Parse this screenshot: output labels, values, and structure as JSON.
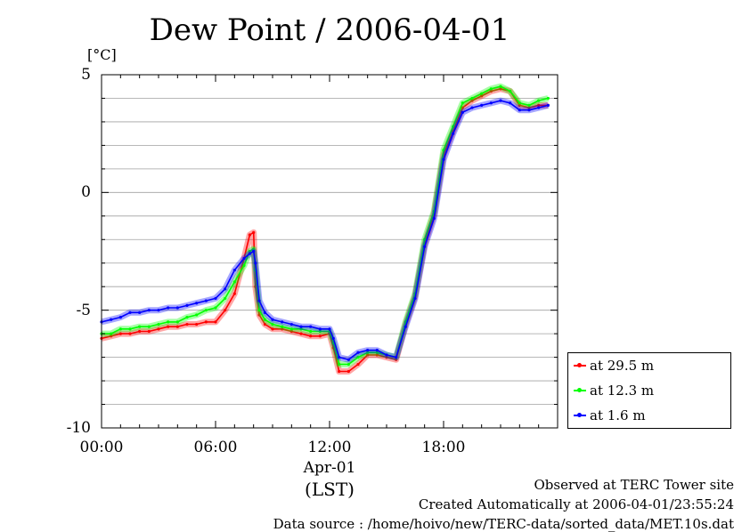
{
  "chart_data": {
    "type": "line",
    "title": "Dew Point / 2006-04-01",
    "ylabel": "[°C]",
    "xlabel": "Apr-01",
    "xlabel_sub": "(LST)",
    "ylim": [
      -10,
      5
    ],
    "yticks": [
      "5",
      "0",
      "-5",
      "-10"
    ],
    "xlim": [
      0,
      24
    ],
    "xticks": [
      "00:00",
      "06:00",
      "12:00",
      "18:00"
    ],
    "grid": "horizontal",
    "legend_position": "bottom-right outside",
    "x": [
      0,
      0.5,
      1,
      1.5,
      2,
      2.5,
      3,
      3.5,
      4,
      4.5,
      5,
      5.5,
      6,
      6.5,
      7,
      7.5,
      7.8,
      8.0,
      8.1,
      8.3,
      8.6,
      9,
      9.5,
      10,
      10.5,
      11,
      11.5,
      12,
      12.2,
      12.5,
      13,
      13.5,
      14,
      14.5,
      15,
      15.5,
      16,
      16.5,
      17,
      17.5,
      18,
      18.5,
      19,
      19.5,
      20,
      20.5,
      21,
      21.5,
      22,
      22.5,
      23,
      23.5
    ],
    "series": [
      {
        "name": "at 29.5 m",
        "color": "#ff0000",
        "values": [
          -6.2,
          -6.1,
          -6.0,
          -6.0,
          -5.9,
          -5.9,
          -5.8,
          -5.7,
          -5.7,
          -5.6,
          -5.6,
          -5.5,
          -5.5,
          -5.0,
          -4.3,
          -2.8,
          -1.8,
          -1.7,
          -4.0,
          -5.2,
          -5.6,
          -5.8,
          -5.8,
          -5.9,
          -6.0,
          -6.1,
          -6.1,
          -6.0,
          -6.6,
          -7.6,
          -7.6,
          -7.3,
          -6.9,
          -6.9,
          -7.0,
          -7.1,
          -5.6,
          -4.4,
          -2.2,
          -0.9,
          1.6,
          2.6,
          3.6,
          3.9,
          4.1,
          4.3,
          4.4,
          4.3,
          3.7,
          3.6,
          3.7,
          3.7
        ]
      },
      {
        "name": "at 12.3 m",
        "color": "#00ff00",
        "values": [
          -6.0,
          -6.0,
          -5.8,
          -5.8,
          -5.7,
          -5.7,
          -5.6,
          -5.5,
          -5.5,
          -5.3,
          -5.2,
          -5.0,
          -4.9,
          -4.5,
          -3.8,
          -3.1,
          -2.5,
          -2.4,
          -3.3,
          -5.0,
          -5.4,
          -5.6,
          -5.7,
          -5.8,
          -5.8,
          -5.9,
          -5.9,
          -5.9,
          -6.4,
          -7.3,
          -7.3,
          -7.0,
          -6.8,
          -6.8,
          -6.9,
          -7.0,
          -5.5,
          -4.3,
          -2.0,
          -0.8,
          1.8,
          2.8,
          3.8,
          4.0,
          4.2,
          4.4,
          4.5,
          4.3,
          3.8,
          3.7,
          3.9,
          4.0
        ]
      },
      {
        "name": "at 1.6 m",
        "color": "#0000ff",
        "values": [
          -5.5,
          -5.4,
          -5.3,
          -5.1,
          -5.1,
          -5.0,
          -5.0,
          -4.9,
          -4.9,
          -4.8,
          -4.7,
          -4.6,
          -4.5,
          -4.1,
          -3.3,
          -2.8,
          -2.6,
          -2.5,
          -3.0,
          -4.6,
          -5.1,
          -5.4,
          -5.5,
          -5.6,
          -5.7,
          -5.7,
          -5.8,
          -5.8,
          -6.2,
          -7.0,
          -7.1,
          -6.8,
          -6.7,
          -6.7,
          -6.9,
          -7.0,
          -5.7,
          -4.5,
          -2.3,
          -1.1,
          1.4,
          2.5,
          3.4,
          3.6,
          3.7,
          3.8,
          3.9,
          3.8,
          3.5,
          3.5,
          3.6,
          3.7
        ]
      }
    ]
  },
  "footer": {
    "line1": "Observed at TERC Tower site",
    "line2": "Created Automatically at 2006-04-01/23:55:24",
    "line3": "Data source : /home/hoivo/new/TERC-data/sorted_data/MET.10s.dat"
  }
}
